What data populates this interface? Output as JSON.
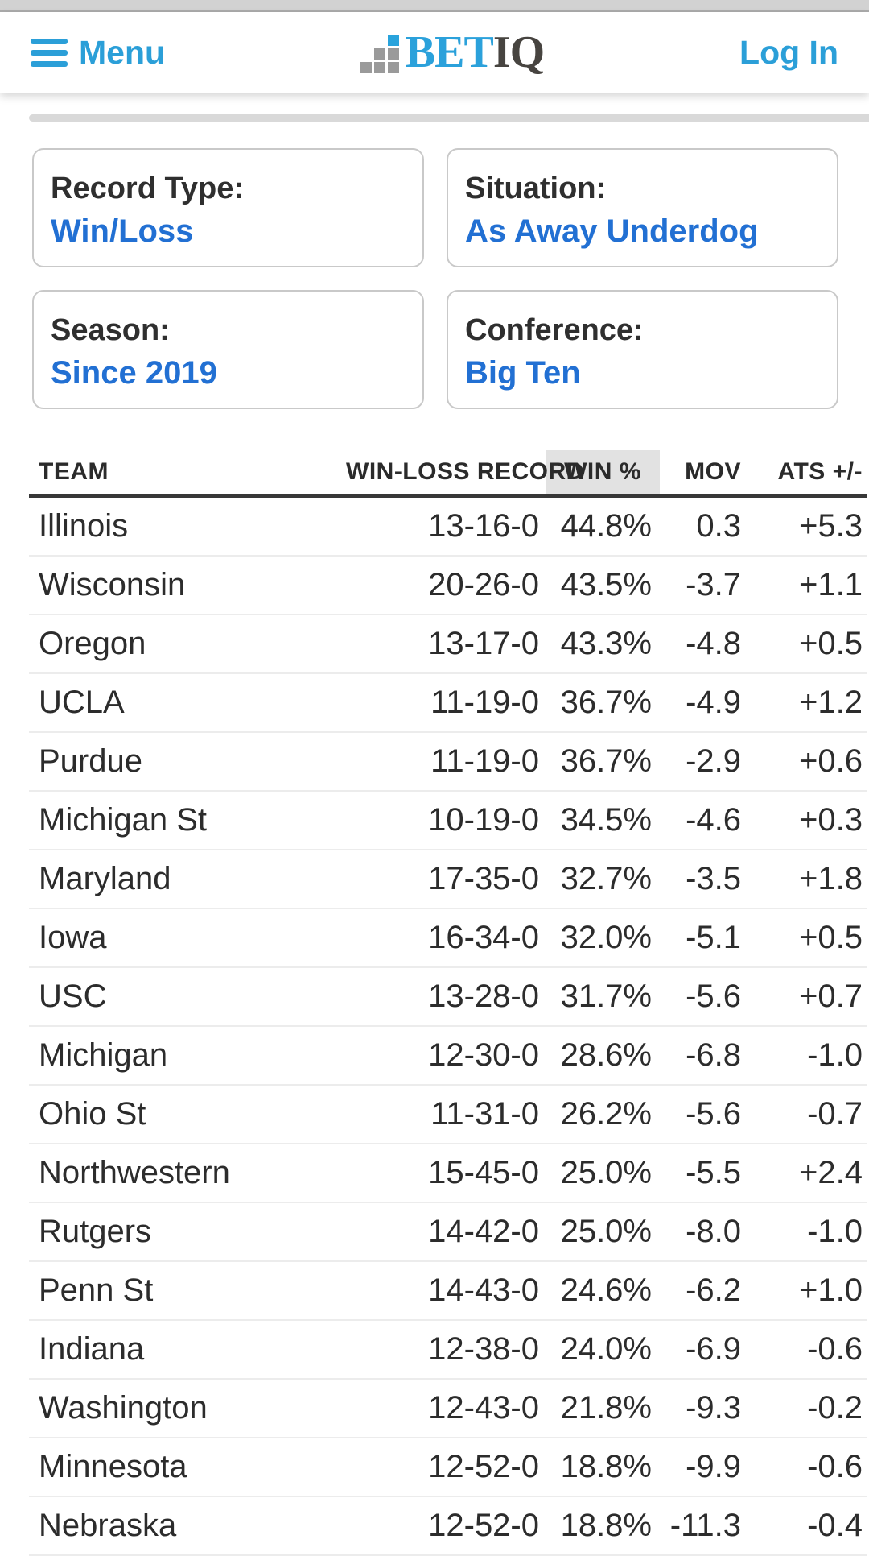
{
  "header": {
    "menu_label": "Menu",
    "logo": {
      "part1": "Bet",
      "part2": "IQ"
    },
    "login_label": "Log In"
  },
  "filters": [
    {
      "label": "Record Type:",
      "value": "Win/Loss"
    },
    {
      "label": "Situation:",
      "value": "As Away Underdog"
    },
    {
      "label": "Season:",
      "value": "Since 2019"
    },
    {
      "label": "Conference:",
      "value": "Big Ten"
    }
  ],
  "table": {
    "columns": [
      "TEAM",
      "WIN-LOSS RECORD",
      "WIN %",
      "MOV",
      "ATS +/-"
    ],
    "sorted_column": "WIN %",
    "rows": [
      {
        "team": "Illinois",
        "record": "13-16-0",
        "win_pct": "44.8%",
        "mov": "0.3",
        "ats": "+5.3"
      },
      {
        "team": "Wisconsin",
        "record": "20-26-0",
        "win_pct": "43.5%",
        "mov": "-3.7",
        "ats": "+1.1"
      },
      {
        "team": "Oregon",
        "record": "13-17-0",
        "win_pct": "43.3%",
        "mov": "-4.8",
        "ats": "+0.5"
      },
      {
        "team": "UCLA",
        "record": "11-19-0",
        "win_pct": "36.7%",
        "mov": "-4.9",
        "ats": "+1.2"
      },
      {
        "team": "Purdue",
        "record": "11-19-0",
        "win_pct": "36.7%",
        "mov": "-2.9",
        "ats": "+0.6"
      },
      {
        "team": "Michigan St",
        "record": "10-19-0",
        "win_pct": "34.5%",
        "mov": "-4.6",
        "ats": "+0.3"
      },
      {
        "team": "Maryland",
        "record": "17-35-0",
        "win_pct": "32.7%",
        "mov": "-3.5",
        "ats": "+1.8"
      },
      {
        "team": "Iowa",
        "record": "16-34-0",
        "win_pct": "32.0%",
        "mov": "-5.1",
        "ats": "+0.5"
      },
      {
        "team": "USC",
        "record": "13-28-0",
        "win_pct": "31.7%",
        "mov": "-5.6",
        "ats": "+0.7"
      },
      {
        "team": "Michigan",
        "record": "12-30-0",
        "win_pct": "28.6%",
        "mov": "-6.8",
        "ats": "-1.0"
      },
      {
        "team": "Ohio St",
        "record": "11-31-0",
        "win_pct": "26.2%",
        "mov": "-5.6",
        "ats": "-0.7"
      },
      {
        "team": "Northwestern",
        "record": "15-45-0",
        "win_pct": "25.0%",
        "mov": "-5.5",
        "ats": "+2.4"
      },
      {
        "team": "Rutgers",
        "record": "14-42-0",
        "win_pct": "25.0%",
        "mov": "-8.0",
        "ats": "-1.0"
      },
      {
        "team": "Penn St",
        "record": "14-43-0",
        "win_pct": "24.6%",
        "mov": "-6.2",
        "ats": "+1.0"
      },
      {
        "team": "Indiana",
        "record": "12-38-0",
        "win_pct": "24.0%",
        "mov": "-6.9",
        "ats": "-0.6"
      },
      {
        "team": "Washington",
        "record": "12-43-0",
        "win_pct": "21.8%",
        "mov": "-9.3",
        "ats": "-0.2"
      },
      {
        "team": "Minnesota",
        "record": "12-52-0",
        "win_pct": "18.8%",
        "mov": "-9.9",
        "ats": "-0.6"
      },
      {
        "team": "Nebraska",
        "record": "12-52-0",
        "win_pct": "18.8%",
        "mov": "-11.3",
        "ats": "-0.4"
      }
    ]
  },
  "colors": {
    "accent_light_blue": "#2b9fd8",
    "accent_royal_blue": "#2270d3",
    "logo_blue": "#29a3dc",
    "logo_dark": "#474440",
    "sorted_header_bg": "#e2e2e2",
    "table_rule_dark": "#373737"
  }
}
